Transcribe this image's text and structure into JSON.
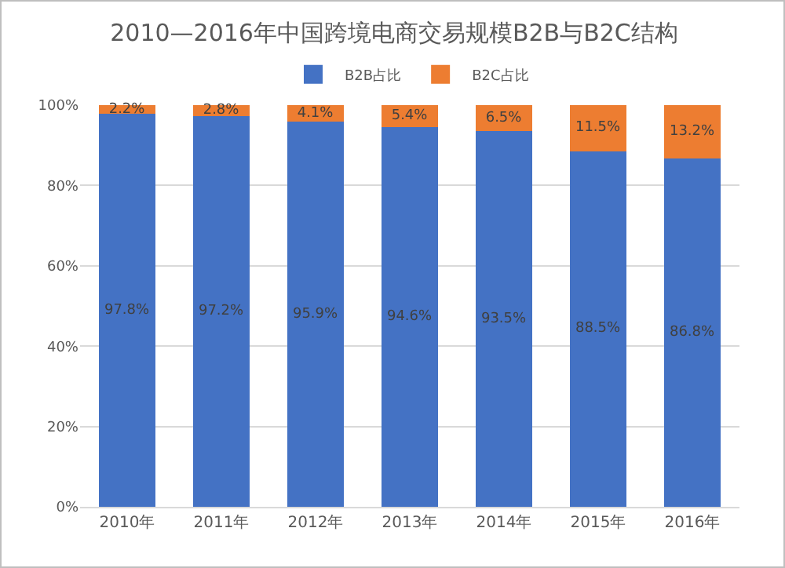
{
  "chart_data": {
    "type": "bar",
    "title": "2010—2016年中国跨境电商交易规模B2B与B2C结构",
    "categories": [
      "2010年",
      "2011年",
      "2012年",
      "2013年",
      "2014年",
      "2015年",
      "2016年"
    ],
    "stacked": true,
    "series": [
      {
        "name": "B2B占比",
        "color": "#4472c4",
        "values": [
          97.8,
          97.2,
          95.9,
          94.6,
          93.5,
          88.5,
          86.8
        ],
        "value_labels": [
          "97.8%",
          "97.2%",
          "95.9%",
          "94.6%",
          "93.5%",
          "88.5%",
          "86.8%"
        ]
      },
      {
        "name": "B2C占比",
        "color": "#ed7d31",
        "values": [
          2.2,
          2.8,
          4.1,
          5.4,
          6.5,
          11.5,
          13.2
        ],
        "value_labels": [
          "2.2%",
          "2.8%",
          "4.1%",
          "5.4%",
          "6.5%",
          "11.5%",
          "13.2%"
        ]
      }
    ],
    "ylim": [
      0,
      100
    ],
    "yticks": [
      {
        "value": 0,
        "label": "0%"
      },
      {
        "value": 20,
        "label": "20%"
      },
      {
        "value": 40,
        "label": "40%"
      },
      {
        "value": 60,
        "label": "60%"
      },
      {
        "value": 80,
        "label": "80%"
      },
      {
        "value": 100,
        "label": "100%"
      }
    ],
    "grid": "y",
    "legend": "top"
  }
}
